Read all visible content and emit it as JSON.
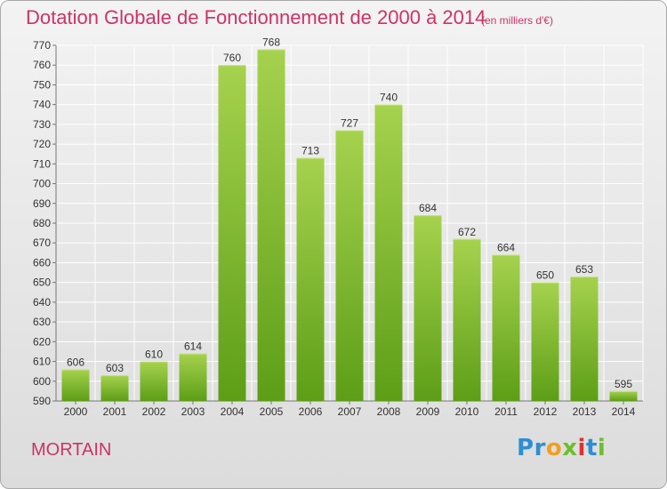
{
  "title": "Dotation Globale de Fonctionnement de 2000 à 2014",
  "unit_note": "(en milliers d'€)",
  "place": "MORTAIN",
  "logo": "Proxiti",
  "colors": {
    "title": "#cc3366",
    "bar_light": "#a6d24e",
    "bar_dark": "#5d9e17",
    "grid": "#ffffff"
  },
  "chart_data": {
    "type": "bar",
    "title": "Dotation Globale de Fonctionnement de 2000 à 2014",
    "subtitle": "(en milliers d'€)",
    "xlabel": "",
    "ylabel": "",
    "categories": [
      "2000",
      "2001",
      "2002",
      "2003",
      "2004",
      "2005",
      "2006",
      "2007",
      "2008",
      "2009",
      "2010",
      "2011",
      "2012",
      "2013",
      "2014"
    ],
    "values": [
      606,
      603,
      610,
      614,
      760,
      768,
      713,
      727,
      740,
      684,
      672,
      664,
      650,
      653,
      595
    ],
    "ylim": [
      590,
      770
    ],
    "yticks": [
      590,
      600,
      610,
      620,
      630,
      640,
      650,
      660,
      670,
      680,
      690,
      700,
      710,
      720,
      730,
      740,
      750,
      760,
      770
    ],
    "grid": true,
    "legend": "none"
  }
}
